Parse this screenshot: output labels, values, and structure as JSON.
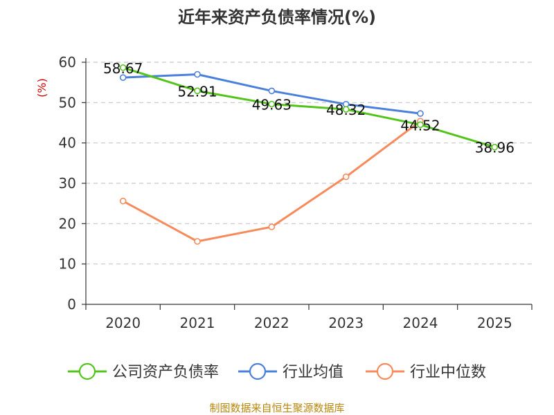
{
  "chart_data": {
    "type": "line",
    "title": "近年来资产负债率情况(%)",
    "ylabel": "(%)",
    "xlabel": "",
    "categories": [
      "2020",
      "2021",
      "2022",
      "2023",
      "2024",
      "2025"
    ],
    "ylim": [
      0,
      60
    ],
    "yticks": [
      0,
      10,
      20,
      30,
      40,
      50,
      60
    ],
    "grid": true,
    "legend_position": "bottom",
    "series": [
      {
        "name": "公司资产负债率",
        "color": "#52c41a",
        "values": [
          58.67,
          52.91,
          49.63,
          48.32,
          44.52,
          38.96
        ],
        "labels": [
          "58.67",
          "52.91",
          "49.63",
          "48.32",
          "44.52",
          "38.96"
        ]
      },
      {
        "name": "行业均值",
        "color": "#4a7fdb",
        "values": [
          56.2,
          57.0,
          52.9,
          49.6,
          47.3,
          null
        ]
      },
      {
        "name": "行业中位数",
        "color": "#f78a5a",
        "values": [
          25.6,
          15.6,
          19.2,
          31.6,
          45.4,
          null
        ]
      }
    ]
  },
  "footer": {
    "source": "制图数据来自恒生聚源数据库"
  }
}
